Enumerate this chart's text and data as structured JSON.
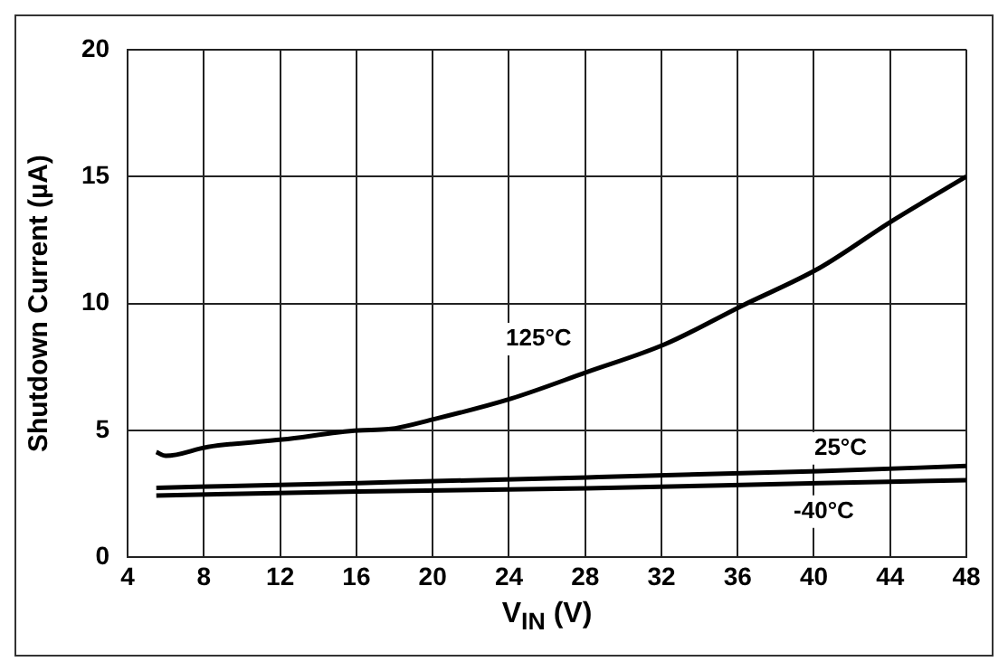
{
  "chart_data": {
    "type": "line",
    "xlabel": "V$_{IN}$ (V)",
    "ylabel": "Shutdown Current (µA)",
    "xlim": [
      4,
      48
    ],
    "xticks": [
      4,
      8,
      12,
      16,
      20,
      24,
      28,
      32,
      36,
      40,
      44,
      48
    ],
    "ylim": [
      0,
      20
    ],
    "yticks": [
      0,
      5,
      10,
      15,
      20
    ],
    "grid": true,
    "legend": false,
    "marker": "none",
    "line_style": "solid",
    "series": [
      {
        "name": "125°C",
        "color": "#000000",
        "x": [
          5.5,
          6,
          8.2,
          12.1,
          16.1,
          17.7,
          20.1,
          24.1,
          28.1,
          32.2,
          36.2,
          40.3,
          44.1,
          48
        ],
        "values": [
          4.15,
          4,
          4.35,
          4.64,
          5,
          5.05,
          5.45,
          6.25,
          7.3,
          8.4,
          9.9,
          11.4,
          13.25,
          15
        ]
      },
      {
        "name": "25°C",
        "color": "#000000",
        "x": [
          5.5,
          16.1,
          28.1,
          40.3,
          48
        ],
        "values": [
          2.74,
          2.93,
          3.15,
          3.4,
          3.6
        ]
      },
      {
        "name": "-40°C",
        "color": "#000000",
        "x": [
          5.5,
          16.1,
          28.1,
          40.3,
          48
        ],
        "values": [
          2.44,
          2.6,
          2.72,
          2.93,
          3.04
        ]
      }
    ]
  }
}
